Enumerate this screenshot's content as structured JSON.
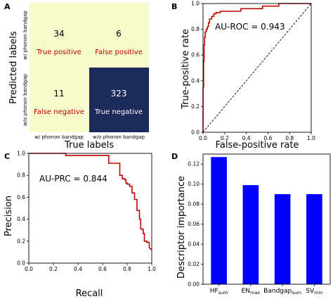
{
  "colors": {
    "roc_curve": "#c00000",
    "prc_curve": "#c00000",
    "bar": "#0000ff",
    "cm_light": "#f7fbcc",
    "cm_dark": "#1d2b5a",
    "cm_label_red": "#c00000",
    "diag_dash": "#000000"
  },
  "panels": {
    "A": {
      "letter": "A",
      "xlabel": "True labels",
      "ylabel": "Predicted labels",
      "x_ticks": [
        "w/ phonon bandgap",
        "w/o phonon bandgap"
      ],
      "y_ticks": [
        "w/ phonon bandgap",
        "w/o phonon bandgap"
      ],
      "cells": [
        {
          "count": "34",
          "label": "True positive",
          "dark": false
        },
        {
          "count": "6",
          "label": "False positive",
          "dark": false
        },
        {
          "count": "11",
          "label": "False negative",
          "dark": false
        },
        {
          "count": "323",
          "label": "True negative",
          "dark": true
        }
      ]
    },
    "B": {
      "letter": "B",
      "annotation": "AU-ROC = 0.943"
    },
    "C": {
      "letter": "C",
      "annotation": "AU-PRC = 0.844"
    },
    "D": {
      "letter": "D"
    }
  },
  "chart_data": [
    {
      "type": "heatmap",
      "xlabel": "True labels",
      "ylabel": "Predicted labels",
      "categories": [
        "w/ phonon bandgap",
        "w/o phonon bandgap"
      ],
      "values": [
        [
          34,
          6
        ],
        [
          11,
          323
        ]
      ],
      "cell_labels": [
        [
          "True positive",
          "False positive"
        ],
        [
          "False negative",
          "True negative"
        ]
      ]
    },
    {
      "type": "line",
      "xlabel": "False-positive rate",
      "ylabel": "True-positive rate",
      "xlim": [
        0,
        1
      ],
      "ylim": [
        0,
        1
      ],
      "xticks": [
        0.0,
        0.2,
        0.4,
        0.6,
        0.8,
        1.0
      ],
      "yticks": [
        0.0,
        0.2,
        0.4,
        0.6,
        0.8,
        1.0
      ],
      "x": [
        0,
        0,
        0.005,
        0.005,
        0.01,
        0.01,
        0.015,
        0.015,
        0.02,
        0.02,
        0.03,
        0.03,
        0.04,
        0.04,
        0.05,
        0.05,
        0.06,
        0.06,
        0.08,
        0.08,
        0.1,
        0.1,
        0.12,
        0.12,
        0.16,
        0.16,
        0.35,
        0.35,
        0.55,
        0.55,
        0.7,
        0.7,
        1.0
      ],
      "y": [
        0,
        0.35,
        0.35,
        0.55,
        0.55,
        0.68,
        0.68,
        0.74,
        0.74,
        0.78,
        0.78,
        0.8,
        0.8,
        0.82,
        0.82,
        0.85,
        0.85,
        0.88,
        0.88,
        0.9,
        0.9,
        0.92,
        0.92,
        0.93,
        0.93,
        0.94,
        0.94,
        0.96,
        0.96,
        0.98,
        0.98,
        1.0,
        1.0
      ],
      "annotation": "AU-ROC = 0.943",
      "diagonal": true
    },
    {
      "type": "line",
      "xlabel": "Recall",
      "ylabel": "Precision",
      "xlim": [
        0,
        1
      ],
      "ylim": [
        0,
        1
      ],
      "xticks": [
        0.0,
        0.2,
        0.4,
        0.6,
        0.8,
        1.0
      ],
      "yticks": [
        0.0,
        0.2,
        0.4,
        0.6,
        0.8,
        1.0
      ],
      "x": [
        0,
        0.3,
        0.3,
        0.65,
        0.65,
        0.74,
        0.74,
        0.76,
        0.76,
        0.78,
        0.78,
        0.79,
        0.79,
        0.8,
        0.8,
        0.82,
        0.82,
        0.84,
        0.84,
        0.86,
        0.86,
        0.88,
        0.88,
        0.9,
        0.9,
        0.91,
        0.91,
        0.93,
        0.93,
        0.94,
        0.94,
        0.96,
        0.96,
        0.98,
        0.98,
        1.0
      ],
      "y": [
        1.0,
        1.0,
        0.98,
        0.98,
        0.91,
        0.91,
        0.8,
        0.8,
        0.77,
        0.77,
        0.76,
        0.76,
        0.73,
        0.73,
        0.72,
        0.72,
        0.7,
        0.7,
        0.64,
        0.64,
        0.58,
        0.58,
        0.48,
        0.48,
        0.4,
        0.4,
        0.31,
        0.31,
        0.27,
        0.27,
        0.2,
        0.2,
        0.19,
        0.19,
        0.14,
        0.12
      ],
      "annotation": "AU-PRC = 0.844"
    },
    {
      "type": "bar",
      "ylabel": "Descriptor importance",
      "categories": [
        {
          "main": "HF",
          "sub": "sum"
        },
        {
          "main": "EN",
          "sub": "max"
        },
        {
          "main": "Bandgap",
          "sub": "sum"
        },
        {
          "main": "SV",
          "sub": "min"
        }
      ],
      "values": [
        0.127,
        0.099,
        0.09,
        0.09
      ],
      "ylim": [
        0,
        0.13
      ],
      "yticks": [
        0.0,
        0.02,
        0.04,
        0.06,
        0.08,
        0.1,
        0.12
      ]
    }
  ]
}
